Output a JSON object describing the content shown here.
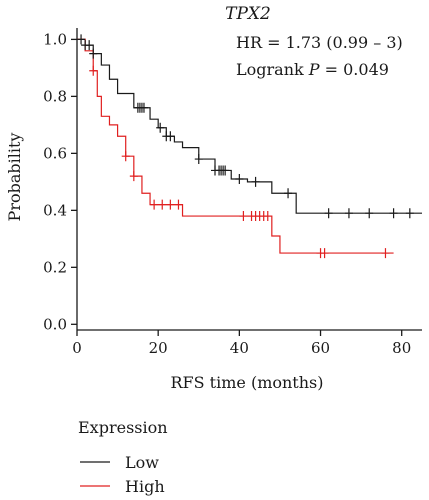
{
  "chart_data": {
    "type": "line",
    "title": "TPX2",
    "xlabel": "RFS time (months)",
    "ylabel": "Probability",
    "xlim": [
      0,
      85
    ],
    "ylim": [
      -0.02,
      1.04
    ],
    "xticks": [
      "0",
      "20",
      "40",
      "60",
      "80"
    ],
    "yticks": [
      "0.0",
      "0.2",
      "0.4",
      "0.6",
      "0.8",
      "1.0"
    ],
    "grid": false,
    "annotations": {
      "hr": "HR = 1.73 (0.99 – 3)",
      "logrank_prefix": "Logrank ",
      "logrank_p": "P",
      "logrank_value": " = 0.049"
    },
    "legend": {
      "title": "Expression",
      "position": "bottom-left"
    },
    "series": [
      {
        "name": "Low",
        "color": "#1a1a1a",
        "x": [
          0,
          2,
          4,
          6,
          8,
          10,
          14,
          18,
          20,
          22,
          24,
          26,
          30,
          34,
          38,
          42,
          48,
          54,
          85
        ],
        "y": [
          1.0,
          0.98,
          0.95,
          0.91,
          0.86,
          0.81,
          0.76,
          0.72,
          0.69,
          0.66,
          0.64,
          0.62,
          0.58,
          0.54,
          0.51,
          0.5,
          0.46,
          0.39,
          0.39
        ],
        "censor_x": [
          1,
          2,
          3,
          4,
          15,
          15.5,
          16,
          16.5,
          20.5,
          22,
          23,
          30,
          34,
          35,
          35.5,
          36,
          36.5,
          40,
          44,
          52,
          62,
          67,
          72,
          78,
          82
        ]
      },
      {
        "name": "High",
        "color": "#e02020",
        "x": [
          0,
          2,
          4,
          5,
          6,
          8,
          10,
          12,
          14,
          16,
          18,
          20,
          26,
          48,
          50,
          78
        ],
        "y": [
          1.0,
          0.96,
          0.89,
          0.8,
          0.73,
          0.7,
          0.66,
          0.59,
          0.52,
          0.46,
          0.42,
          0.42,
          0.38,
          0.31,
          0.25,
          0.25
        ],
        "censor_x": [
          4,
          12,
          14,
          19,
          21,
          23,
          25,
          41,
          43,
          44,
          45,
          46,
          47,
          60,
          61,
          76
        ]
      }
    ]
  }
}
